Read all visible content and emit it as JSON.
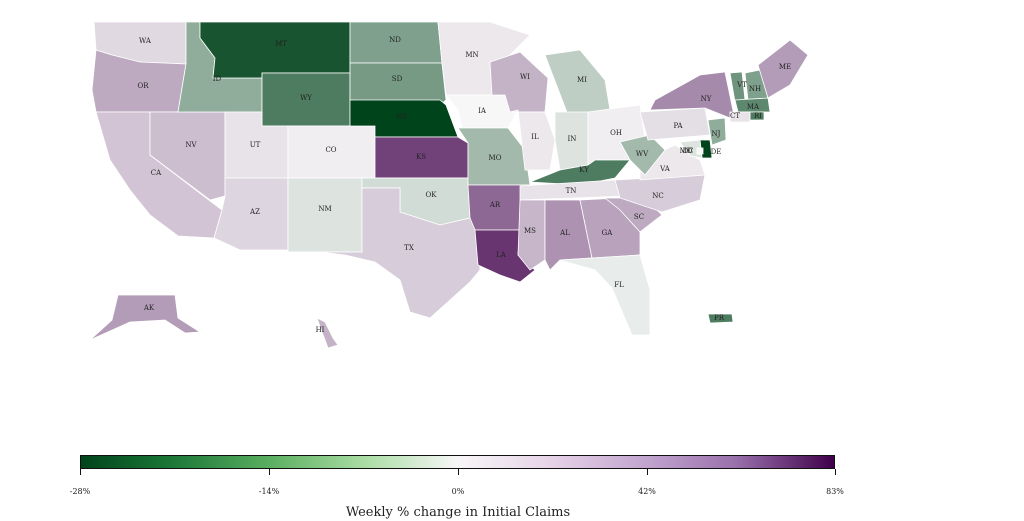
{
  "map": {
    "states": [
      {
        "code": "WA",
        "value": 5,
        "label": "WA"
      },
      {
        "code": "OR",
        "value": 18,
        "label": "OR"
      },
      {
        "code": "CA",
        "value": 10,
        "label": "CA"
      },
      {
        "code": "NV",
        "value": 12,
        "label": "NV"
      },
      {
        "code": "ID",
        "value": -10,
        "label": "ID"
      },
      {
        "code": "MT",
        "value": -25,
        "label": "MT"
      },
      {
        "code": "WY",
        "value": -18,
        "label": "WY"
      },
      {
        "code": "UT",
        "value": 3,
        "label": "UT"
      },
      {
        "code": "CO",
        "value": 1,
        "label": "CO"
      },
      {
        "code": "AZ",
        "value": 6,
        "label": "AZ"
      },
      {
        "code": "NM",
        "value": -2,
        "label": "NM"
      },
      {
        "code": "ND",
        "value": -12,
        "label": "ND"
      },
      {
        "code": "SD",
        "value": -13,
        "label": "SD"
      },
      {
        "code": "NE",
        "value": -28,
        "label": "NE"
      },
      {
        "code": "KS",
        "value": 55,
        "label": "KS"
      },
      {
        "code": "OK",
        "value": -3,
        "label": "OK"
      },
      {
        "code": "TX",
        "value": 8,
        "label": "TX"
      },
      {
        "code": "MN",
        "value": 2,
        "label": "MN"
      },
      {
        "code": "IA",
        "value": 0,
        "label": "IA"
      },
      {
        "code": "MO",
        "value": -8,
        "label": "MO"
      },
      {
        "code": "AR",
        "value": 40,
        "label": "AR"
      },
      {
        "code": "LA",
        "value": 60,
        "label": "LA"
      },
      {
        "code": "WI",
        "value": 15,
        "label": "WI"
      },
      {
        "code": "IL",
        "value": 2,
        "label": "IL"
      },
      {
        "code": "MI",
        "value": -5,
        "label": "MI"
      },
      {
        "code": "IN",
        "value": -2,
        "label": "IN"
      },
      {
        "code": "OH",
        "value": 1,
        "label": "OH"
      },
      {
        "code": "KY",
        "value": -18,
        "label": "KY"
      },
      {
        "code": "TN",
        "value": 3,
        "label": "TN"
      },
      {
        "code": "MS",
        "value": 14,
        "label": "MS"
      },
      {
        "code": "AL",
        "value": 25,
        "label": "AL"
      },
      {
        "code": "GA",
        "value": 20,
        "label": "GA"
      },
      {
        "code": "FL",
        "value": -1,
        "label": "FL"
      },
      {
        "code": "SC",
        "value": 18,
        "label": "SC"
      },
      {
        "code": "NC",
        "value": 8,
        "label": "NC"
      },
      {
        "code": "VA",
        "value": 2,
        "label": "VA"
      },
      {
        "code": "WV",
        "value": -8,
        "label": "WV"
      },
      {
        "code": "PA",
        "value": 4,
        "label": "PA"
      },
      {
        "code": "NY",
        "value": 28,
        "label": "NY"
      },
      {
        "code": "VT",
        "value": -14,
        "label": "VT"
      },
      {
        "code": "NH",
        "value": -12,
        "label": "NH"
      },
      {
        "code": "ME",
        "value": 22,
        "label": "ME"
      },
      {
        "code": "MA",
        "value": -16,
        "label": "MA"
      },
      {
        "code": "RI",
        "value": -18,
        "label": "RI"
      },
      {
        "code": "CT",
        "value": 3,
        "label": "CT"
      },
      {
        "code": "NJ",
        "value": -10,
        "label": "NJ"
      },
      {
        "code": "DE",
        "value": -28,
        "label": "DE"
      },
      {
        "code": "MD",
        "value": -2,
        "label": "MD"
      },
      {
        "code": "DC",
        "value": 0,
        "label": "DC"
      },
      {
        "code": "AK",
        "value": 22,
        "label": "AK"
      },
      {
        "code": "HI",
        "value": 15,
        "label": "HI"
      },
      {
        "code": "PR",
        "value": -18,
        "label": "PR"
      }
    ]
  },
  "legend": {
    "title": "Weekly % change in Initial Claims",
    "ticks": [
      "-28%",
      "-14%",
      "0%",
      "42%",
      "83%"
    ],
    "colors": {
      "min": "#00441b",
      "mid": "#f7f7f7",
      "max": "#40004b"
    }
  }
}
